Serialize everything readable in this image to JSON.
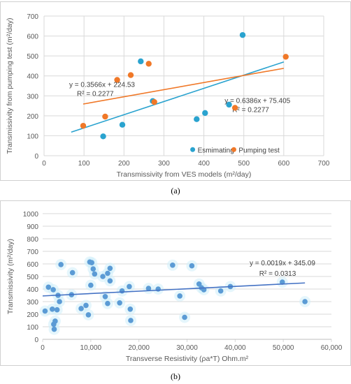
{
  "captions": [
    "(a)",
    "(b)"
  ],
  "colors": {
    "blue": "#2aa3cf",
    "orange": "#f07828",
    "grid": "#d9d9d9",
    "axis_text": "#595959",
    "trend_b": "#4472c4",
    "marker_b": "#5b9bd5"
  },
  "chart_data": [
    {
      "type": "scatter",
      "title": "",
      "xlabel": "Transmissivity from VES models (m²/day)",
      "ylabel": "Transmissivity from pumping test (m²/day)",
      "xlim": [
        0,
        700
      ],
      "ylim": [
        0,
        700
      ],
      "xticks": [
        0,
        100,
        200,
        300,
        400,
        500,
        600,
        700
      ],
      "yticks": [
        0,
        100,
        200,
        300,
        400,
        500,
        600,
        700
      ],
      "grid": true,
      "legend": "bottom-right",
      "series": [
        {
          "name": "Esmimating",
          "color": "#2aa3cf",
          "points": [
            [
              148,
              97
            ],
            [
              196,
              155
            ],
            [
              242,
              473
            ],
            [
              272,
              274
            ],
            [
              382,
              183
            ],
            [
              403,
              214
            ],
            [
              463,
              256
            ],
            [
              497,
              605
            ]
          ],
          "trendline": {
            "from": [
              68,
              118
            ],
            "to": [
              600,
              470
            ]
          },
          "equation": "y = 0.6386x + 75.405",
          "r2": "R² = 0.2277"
        },
        {
          "name": "Pumping test",
          "color": "#f07828",
          "points": [
            [
              98,
              150
            ],
            [
              153,
              196
            ],
            [
              183,
              380
            ],
            [
              217,
              404
            ],
            [
              262,
              461
            ],
            [
              276,
              269
            ],
            [
              478,
              240
            ],
            [
              605,
              496
            ]
          ],
          "trendline": {
            "from": [
              98,
              259
            ],
            "to": [
              600,
              438
            ]
          },
          "equation": "y = 0.3566x + 224.53",
          "r2": "R² = 0.2277"
        }
      ]
    },
    {
      "type": "scatter",
      "title": "",
      "xlabel": "Transverse Resistivity (ρa*T) Ohm.m²",
      "ylabel": "Transmissivity (m²/day)",
      "xlim": [
        0,
        60000
      ],
      "ylim": [
        0,
        1000
      ],
      "xticks": [
        "0",
        "10,000",
        "20,000",
        "30,000",
        "40,000",
        "50,000",
        "60,000"
      ],
      "yticks": [
        0,
        100,
        200,
        300,
        400,
        500,
        600,
        700,
        800,
        900,
        1000
      ],
      "grid": true,
      "series": [
        {
          "name": "",
          "points": [
            [
              500,
              225
            ],
            [
              1200,
              415
            ],
            [
              2000,
              240
            ],
            [
              2200,
              395
            ],
            [
              2300,
              120
            ],
            [
              2400,
              80
            ],
            [
              2600,
              145
            ],
            [
              3000,
              235
            ],
            [
              3200,
              350
            ],
            [
              3500,
              300
            ],
            [
              3800,
              595
            ],
            [
              6000,
              355
            ],
            [
              6200,
              530
            ],
            [
              8000,
              245
            ],
            [
              9000,
              270
            ],
            [
              9500,
              195
            ],
            [
              9800,
              615
            ],
            [
              10000,
              430
            ],
            [
              10200,
              610
            ],
            [
              10500,
              560
            ],
            [
              10800,
              520
            ],
            [
              12500,
              500
            ],
            [
              13000,
              340
            ],
            [
              13500,
              525
            ],
            [
              13500,
              285
            ],
            [
              14000,
              565
            ],
            [
              14000,
              465
            ],
            [
              16000,
              290
            ],
            [
              16500,
              385
            ],
            [
              18000,
              420
            ],
            [
              18200,
              240
            ],
            [
              18300,
              150
            ],
            [
              22000,
              405
            ],
            [
              24000,
              400
            ],
            [
              27000,
              590
            ],
            [
              28500,
              345
            ],
            [
              29500,
              175
            ],
            [
              31000,
              585
            ],
            [
              32500,
              440
            ],
            [
              33000,
              410
            ],
            [
              33500,
              395
            ],
            [
              37000,
              385
            ],
            [
              39000,
              420
            ],
            [
              49800,
              455
            ],
            [
              54500,
              300
            ]
          ],
          "trendline": {
            "from": [
              0,
              345.09
            ],
            "to": [
              54500,
              448.64
            ]
          },
          "equation": "y = 0.0019x + 345.09",
          "r2": "R² = 0.0313"
        }
      ]
    }
  ]
}
